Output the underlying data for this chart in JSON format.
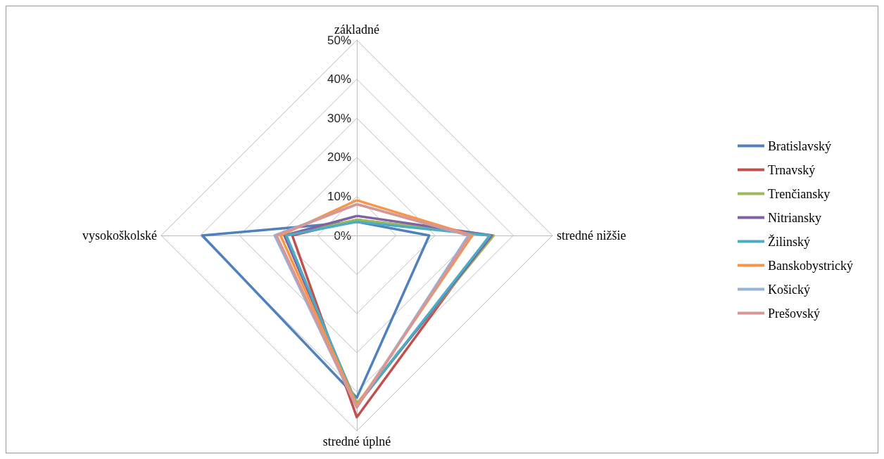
{
  "chart_data": {
    "type": "radar",
    "categories": [
      "základné",
      "stredné nižšie",
      "stredné úplné",
      "vysokoškolské"
    ],
    "ylim": [
      0,
      50
    ],
    "yticks": [
      {
        "value": 0,
        "label": "0%"
      },
      {
        "value": 10,
        "label": "10%"
      },
      {
        "value": 20,
        "label": "20%"
      },
      {
        "value": 30,
        "label": "30%"
      },
      {
        "value": 40,
        "label": "40%"
      },
      {
        "value": 50,
        "label": "50%"
      }
    ],
    "grid": true,
    "legend": "right",
    "marker": "none",
    "line_style": "solid",
    "series": [
      {
        "name": "Bratislavský",
        "color": "#4f81bd",
        "values": [
          3.5,
          18.5,
          41.5,
          39.5
        ]
      },
      {
        "name": "Trnavský",
        "color": "#c0504d",
        "values": [
          4,
          34,
          46.5,
          16.5
        ]
      },
      {
        "name": "Trenčiansky",
        "color": "#9bbb59",
        "values": [
          4,
          35,
          43,
          18.5
        ]
      },
      {
        "name": "Nitriansky",
        "color": "#8064a2",
        "values": [
          5,
          34.5,
          43.5,
          18.5
        ]
      },
      {
        "name": "Žilinský",
        "color": "#4bacc6",
        "values": [
          3.5,
          34,
          43.5,
          18
        ]
      },
      {
        "name": "Banskobystrický",
        "color": "#f79646",
        "values": [
          9,
          29.5,
          43.5,
          19.5
        ]
      },
      {
        "name": "Košický",
        "color": "#95b3d7",
        "values": [
          8,
          28.5,
          44,
          21
        ]
      },
      {
        "name": "Prešovský",
        "color": "#d99694",
        "values": [
          8,
          29,
          44,
          20.5
        ]
      }
    ]
  }
}
